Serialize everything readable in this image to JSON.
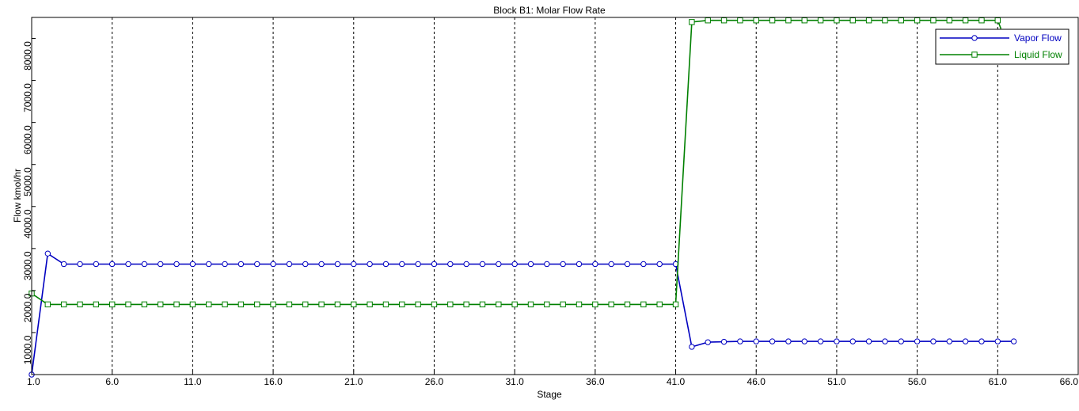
{
  "chart_data": {
    "type": "line",
    "title": "Block B1: Molar Flow Rate",
    "xlabel": "Stage",
    "ylabel": "Flow kmol/hr",
    "xlim": [
      1,
      66
    ],
    "ylim": [
      0,
      8500
    ],
    "x_ticks": [
      "1.0",
      "6.0",
      "11.0",
      "16.0",
      "21.0",
      "26.0",
      "31.0",
      "36.0",
      "41.0",
      "46.0",
      "51.0",
      "56.0",
      "61.0",
      "66.0"
    ],
    "x_tick_values": [
      1,
      6,
      11,
      16,
      21,
      26,
      31,
      36,
      41,
      46,
      51,
      56,
      61,
      66
    ],
    "y_ticks": [
      "1000.0",
      "2000.0",
      "3000.0",
      "4000.0",
      "5000.0",
      "6000.0",
      "7000.0",
      "8000.0"
    ],
    "y_tick_values": [
      1000,
      2000,
      3000,
      4000,
      5000,
      6000,
      7000,
      8000
    ],
    "grid": "vertical-dashed",
    "legend_position": "top-right",
    "series": [
      {
        "name": "Vapor Flow",
        "color": "#0000c0",
        "marker": "circle",
        "x": [
          1,
          2,
          3,
          4,
          5,
          6,
          7,
          8,
          9,
          10,
          11,
          12,
          13,
          14,
          15,
          16,
          17,
          18,
          19,
          20,
          21,
          22,
          23,
          24,
          25,
          26,
          27,
          28,
          29,
          30,
          31,
          32,
          33,
          34,
          35,
          36,
          37,
          38,
          39,
          40,
          41,
          42,
          43,
          44,
          45,
          46,
          47,
          48,
          49,
          50,
          51,
          52,
          53,
          54,
          55,
          56,
          57,
          58,
          59,
          60,
          61,
          62
        ],
        "y": [
          0,
          2880,
          2630,
          2630,
          2630,
          2630,
          2630,
          2630,
          2630,
          2630,
          2630,
          2630,
          2630,
          2630,
          2630,
          2630,
          2630,
          2630,
          2630,
          2630,
          2630,
          2630,
          2630,
          2630,
          2630,
          2630,
          2630,
          2630,
          2630,
          2630,
          2630,
          2630,
          2630,
          2630,
          2630,
          2630,
          2630,
          2630,
          2630,
          2630,
          2630,
          660,
          770,
          780,
          790,
          790,
          790,
          790,
          790,
          790,
          790,
          790,
          790,
          790,
          790,
          790,
          790,
          790,
          790,
          790,
          790,
          790
        ]
      },
      {
        "name": "Liquid Flow",
        "color": "#008000",
        "marker": "square",
        "x": [
          1,
          2,
          3,
          4,
          5,
          6,
          7,
          8,
          9,
          10,
          11,
          12,
          13,
          14,
          15,
          16,
          17,
          18,
          19,
          20,
          21,
          22,
          23,
          24,
          25,
          26,
          27,
          28,
          29,
          30,
          31,
          32,
          33,
          34,
          35,
          36,
          37,
          38,
          39,
          40,
          41,
          42,
          43,
          44,
          45,
          46,
          47,
          48,
          49,
          50,
          51,
          52,
          53,
          54,
          55,
          56,
          57,
          58,
          59,
          60,
          61,
          61.2
        ],
        "y": [
          1930,
          1670,
          1670,
          1670,
          1670,
          1670,
          1670,
          1670,
          1670,
          1670,
          1670,
          1670,
          1670,
          1670,
          1670,
          1670,
          1670,
          1670,
          1670,
          1670,
          1670,
          1670,
          1670,
          1670,
          1670,
          1670,
          1670,
          1670,
          1670,
          1670,
          1670,
          1670,
          1670,
          1670,
          1670,
          1670,
          1670,
          1670,
          1670,
          1670,
          1670,
          8390,
          8430,
          8430,
          8430,
          8430,
          8430,
          8430,
          8430,
          8430,
          8430,
          8430,
          8430,
          8430,
          8430,
          8430,
          8430,
          8430,
          8430,
          8430,
          8430,
          8230
        ]
      }
    ]
  }
}
